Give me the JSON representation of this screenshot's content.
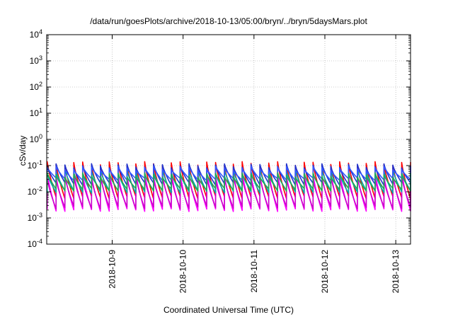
{
  "chart_data": {
    "type": "line",
    "title": "/data/run/goesPlots/archive/2018-10-13/05:00/bryn/../bryn/5daysMars.plot",
    "xlabel": "Coordinated Universal Time (UTC)",
    "ylabel": "cSv/day",
    "yscale": "log",
    "ylim": [
      0.0001,
      10000
    ],
    "xlim": [
      "2018-10-08T01:50",
      "2018-10-13T05:00"
    ],
    "x_ticks": [
      "2018-10-9",
      "2018-10-10",
      "2018-10-11",
      "2018-10-12",
      "2018-10-13"
    ],
    "y_ticks": [
      {
        "base": "10",
        "exp": "-4",
        "value": 0.0001
      },
      {
        "base": "10",
        "exp": "-3",
        "value": 0.001
      },
      {
        "base": "10",
        "exp": "-2",
        "value": 0.01
      },
      {
        "base": "10",
        "exp": "-1",
        "value": 0.1
      },
      {
        "base": "10",
        "exp": "0",
        "value": 1
      },
      {
        "base": "10",
        "exp": "1",
        "value": 10
      },
      {
        "base": "10",
        "exp": "2",
        "value": 100
      },
      {
        "base": "10",
        "exp": "3",
        "value": 1000
      },
      {
        "base": "10",
        "exp": "4",
        "value": 10000
      }
    ],
    "grid": true,
    "legend": "none",
    "sawtooth": {
      "period_hours": 3,
      "first_peak": "2018-10-08T02:00",
      "note_shape": "sharp rise at each peak then decay to trough"
    },
    "series": [
      {
        "color": "#ff0000",
        "peak": 0.12,
        "trough": 0.006
      },
      {
        "color": "#ff00ff",
        "peak": 0.05,
        "trough": 0.002
      },
      {
        "color": "#cc00cc",
        "peak": 0.035,
        "trough": 0.0025
      },
      {
        "color": "#00aaaa",
        "peak": 0.06,
        "trough": 0.01
      },
      {
        "color": "#2233cc",
        "peak": 0.1,
        "trough": 0.02
      },
      {
        "color": "#3355ff",
        "peak": 0.08,
        "trough": 0.03
      },
      {
        "color": "#22aa55",
        "peak": 0.045,
        "trough": 0.012
      }
    ]
  }
}
